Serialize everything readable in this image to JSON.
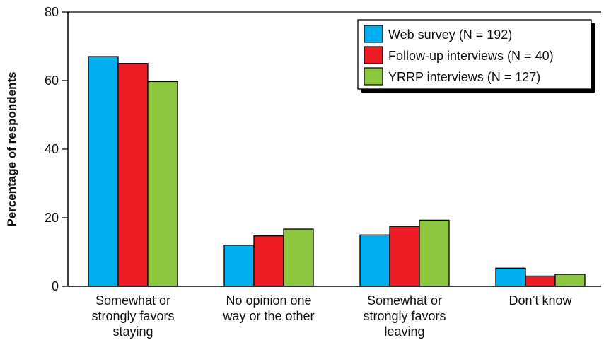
{
  "chart_data": {
    "type": "bar",
    "ylabel": "Percentage of respondents",
    "xlabel": "",
    "ylim": [
      0,
      80
    ],
    "yticks": [
      0,
      20,
      40,
      60,
      80
    ],
    "grid": false,
    "legend_position": "top-right",
    "categories": [
      [
        "Somewhat or",
        "strongly favors",
        "staying"
      ],
      [
        "No opinion one",
        "way or the other"
      ],
      [
        "Somewhat or",
        "strongly favors",
        "leaving"
      ],
      [
        "Don’t know"
      ]
    ],
    "series": [
      {
        "name": "Web survey (N = 192)",
        "color": "#00ADEF",
        "values": [
          67,
          12,
          15,
          5.3
        ]
      },
      {
        "name": "Follow-up interviews (N = 40)",
        "color": "#ED1C24",
        "values": [
          65,
          14.7,
          17.5,
          3
        ]
      },
      {
        "name": "YRRP interviews (N = 127)",
        "color": "#8DC63F",
        "values": [
          59.7,
          16.7,
          19.3,
          3.5
        ]
      }
    ]
  }
}
